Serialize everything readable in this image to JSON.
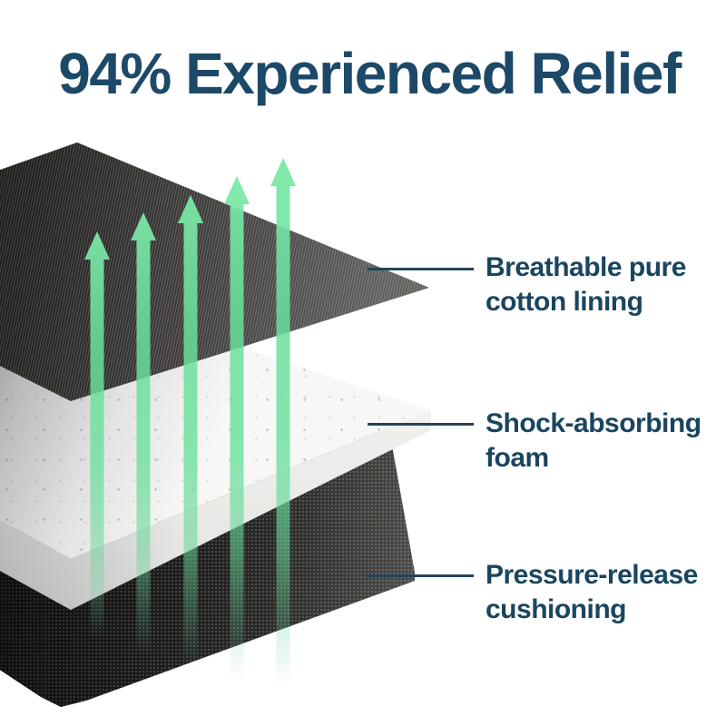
{
  "headline": "94% Experienced Relief",
  "diagram": {
    "layers": [
      {
        "id": "cotton-lining",
        "label": "Breathable pure\ncotton lining"
      },
      {
        "id": "foam",
        "label": "Shock-absorbing\nfoam"
      },
      {
        "id": "cushioning",
        "label": "Pressure-release\ncushioning"
      }
    ],
    "arrows": {
      "count": 5,
      "direction": "up"
    }
  },
  "colors": {
    "heading_navy": "#1d4968",
    "label_navy": "#1a455f",
    "leader_line": "#24435c",
    "arrow_green": "#6ae09c",
    "foam_white": "#f7f7f5",
    "fabric_dark": "#282725",
    "mat_dark": "#1d1d1d"
  }
}
